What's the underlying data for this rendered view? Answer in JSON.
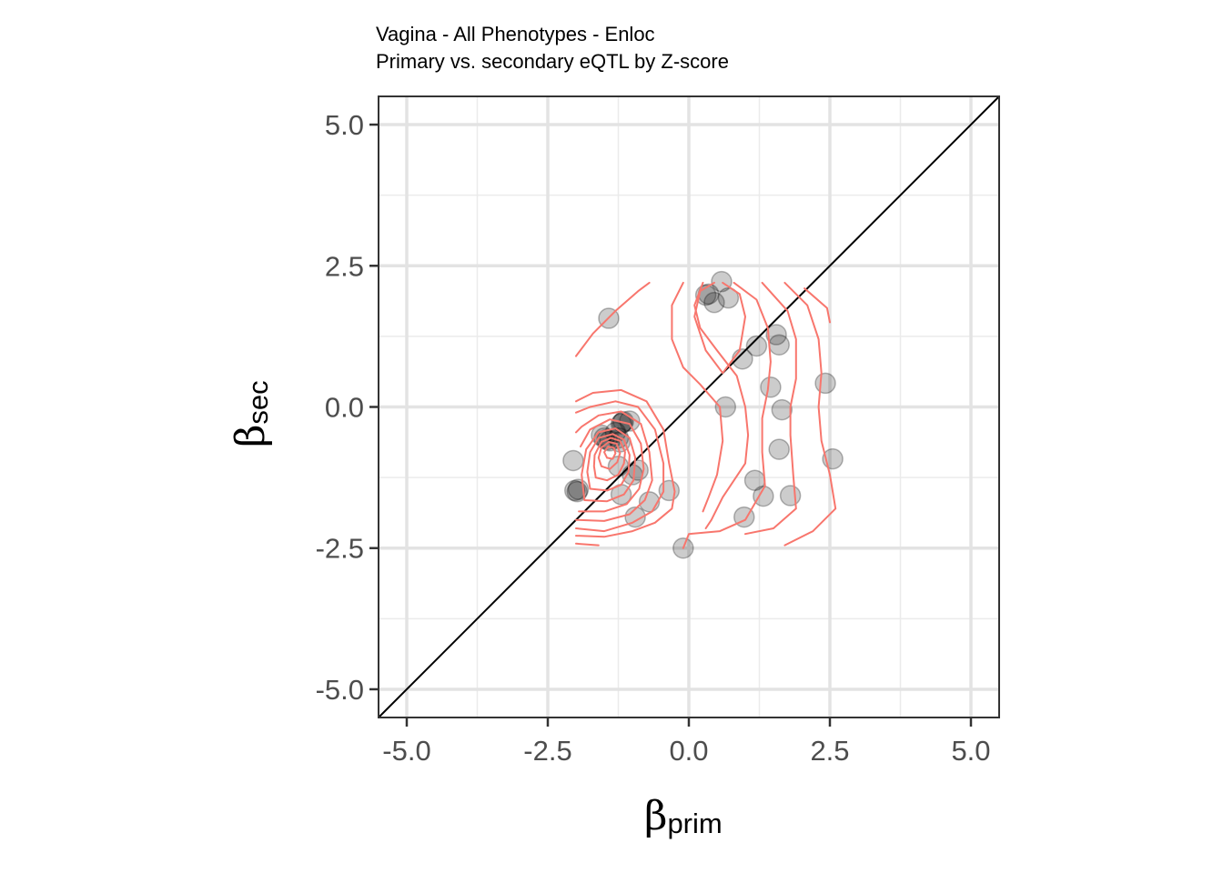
{
  "chart_data": {
    "type": "scatter",
    "title": "Vagina - All Phenotypes - Enloc",
    "subtitle": "Primary vs. secondary eQTL by Z-score",
    "xlabel": {
      "symbol": "β",
      "subscript": "prim"
    },
    "ylabel": {
      "symbol": "β",
      "subscript": "sec"
    },
    "xlim": [
      -5.5,
      5.5
    ],
    "ylim": [
      -5.5,
      5.5
    ],
    "x_ticks": [
      -5.0,
      -2.5,
      0.0,
      2.5,
      5.0
    ],
    "y_ticks": [
      -5.0,
      -2.5,
      0.0,
      2.5,
      5.0
    ],
    "x_tick_labels": [
      "-5.0",
      "-2.5",
      "0.0",
      "2.5",
      "5.0"
    ],
    "y_tick_labels": [
      "-5.0",
      "-2.5",
      "0.0",
      "2.5",
      "5.0"
    ],
    "grid": true,
    "reference_line": "y = x",
    "point_color": "#000000",
    "point_opacity": 0.2,
    "contour_color": "#f8766d",
    "points": [
      [
        -1.42,
        1.57
      ],
      [
        -1.18,
        -0.28
      ],
      [
        -1.2,
        -0.3
      ],
      [
        -1.16,
        -0.26
      ],
      [
        -1.05,
        -0.25
      ],
      [
        -1.3,
        -0.45
      ],
      [
        -1.25,
        -0.55
      ],
      [
        -1.5,
        -0.55
      ],
      [
        -1.45,
        -0.58
      ],
      [
        -1.4,
        -0.6
      ],
      [
        -1.55,
        -0.5
      ],
      [
        -1.22,
        -0.62
      ],
      [
        -2.05,
        -0.95
      ],
      [
        -1.25,
        -1.05
      ],
      [
        -1.0,
        -1.2
      ],
      [
        -0.9,
        -1.12
      ],
      [
        -1.2,
        -1.55
      ],
      [
        -2.02,
        -1.48
      ],
      [
        -1.98,
        -1.5
      ],
      [
        -1.96,
        -1.46
      ],
      [
        -0.7,
        -1.68
      ],
      [
        -0.35,
        -1.48
      ],
      [
        -0.95,
        -1.95
      ],
      [
        -0.1,
        -2.5
      ],
      [
        0.58,
        2.22
      ],
      [
        0.3,
        1.98
      ],
      [
        0.35,
        2.0
      ],
      [
        0.45,
        1.85
      ],
      [
        0.7,
        1.93
      ],
      [
        0.95,
        0.85
      ],
      [
        1.2,
        1.08
      ],
      [
        1.55,
        1.28
      ],
      [
        1.6,
        1.1
      ],
      [
        1.45,
        0.35
      ],
      [
        0.65,
        0.0
      ],
      [
        1.65,
        -0.05
      ],
      [
        2.42,
        0.42
      ],
      [
        1.6,
        -0.75
      ],
      [
        2.55,
        -0.92
      ],
      [
        1.17,
        -1.3
      ],
      [
        1.32,
        -1.58
      ],
      [
        1.8,
        -1.57
      ],
      [
        0.98,
        -1.95
      ]
    ],
    "contours": [
      [
        [
          -2.0,
          -2.42
        ],
        [
          -1.6,
          -2.45
        ]
      ],
      [
        [
          -2.0,
          -2.28
        ],
        [
          -1.5,
          -2.3
        ],
        [
          -1.0,
          -2.2
        ],
        [
          -0.6,
          -2.05
        ],
        [
          -0.3,
          -1.8
        ],
        [
          -0.25,
          -1.5
        ],
        [
          -0.35,
          -1.0
        ],
        [
          -0.45,
          -0.4
        ],
        [
          -0.75,
          0.1
        ],
        [
          -1.2,
          0.3
        ],
        [
          -1.7,
          0.25
        ],
        [
          -2.0,
          0.1
        ]
      ],
      [
        [
          -2.0,
          -2.15
        ],
        [
          -1.5,
          -2.2
        ],
        [
          -1.0,
          -2.05
        ],
        [
          -0.65,
          -1.85
        ],
        [
          -0.45,
          -1.5
        ],
        [
          -0.45,
          -1.0
        ],
        [
          -0.6,
          -0.4
        ],
        [
          -0.9,
          0.0
        ],
        [
          -1.3,
          0.1
        ],
        [
          -1.75,
          0.0
        ],
        [
          -2.0,
          -0.1
        ]
      ],
      [
        [
          -2.0,
          -2.0
        ],
        [
          -1.5,
          -2.02
        ],
        [
          -1.05,
          -1.9
        ],
        [
          -0.78,
          -1.65
        ],
        [
          -0.65,
          -1.3
        ],
        [
          -0.7,
          -0.8
        ],
        [
          -0.85,
          -0.3
        ],
        [
          -1.2,
          -0.08
        ],
        [
          -1.6,
          -0.15
        ],
        [
          -1.9,
          -0.35
        ],
        [
          -2.0,
          -0.45
        ]
      ],
      [
        [
          -1.95,
          -1.85
        ],
        [
          -1.5,
          -1.85
        ],
        [
          -1.1,
          -1.72
        ],
        [
          -0.88,
          -1.45
        ],
        [
          -0.8,
          -1.1
        ],
        [
          -0.85,
          -0.65
        ],
        [
          -1.05,
          -0.3
        ],
        [
          -1.4,
          -0.22
        ],
        [
          -1.75,
          -0.4
        ],
        [
          -1.92,
          -0.7
        ]
      ],
      [
        [
          -1.85,
          -1.65
        ],
        [
          -1.45,
          -1.67
        ],
        [
          -1.15,
          -1.55
        ],
        [
          -0.98,
          -1.3
        ],
        [
          -0.95,
          -0.9
        ],
        [
          -1.05,
          -0.55
        ],
        [
          -1.3,
          -0.38
        ],
        [
          -1.6,
          -0.45
        ],
        [
          -1.82,
          -0.75
        ],
        [
          -1.9,
          -1.2
        ],
        [
          -1.85,
          -1.65
        ]
      ],
      [
        [
          -1.75,
          -1.45
        ],
        [
          -1.45,
          -1.48
        ],
        [
          -1.2,
          -1.38
        ],
        [
          -1.07,
          -1.15
        ],
        [
          -1.05,
          -0.85
        ],
        [
          -1.15,
          -0.58
        ],
        [
          -1.35,
          -0.48
        ],
        [
          -1.6,
          -0.55
        ],
        [
          -1.75,
          -0.8
        ],
        [
          -1.8,
          -1.15
        ],
        [
          -1.75,
          -1.45
        ]
      ],
      [
        [
          -1.65,
          -1.25
        ],
        [
          -1.45,
          -1.3
        ],
        [
          -1.25,
          -1.2
        ],
        [
          -1.15,
          -1.0
        ],
        [
          -1.13,
          -0.8
        ],
        [
          -1.22,
          -0.6
        ],
        [
          -1.38,
          -0.55
        ],
        [
          -1.55,
          -0.62
        ],
        [
          -1.67,
          -0.85
        ],
        [
          -1.68,
          -1.05
        ],
        [
          -1.65,
          -1.25
        ]
      ],
      [
        [
          -1.55,
          -1.05
        ],
        [
          -1.4,
          -1.1
        ],
        [
          -1.27,
          -0.98
        ],
        [
          -1.22,
          -0.82
        ],
        [
          -1.28,
          -0.65
        ],
        [
          -1.42,
          -0.62
        ],
        [
          -1.55,
          -0.72
        ],
        [
          -1.6,
          -0.9
        ],
        [
          -1.55,
          -1.05
        ]
      ],
      [
        [
          -1.45,
          -0.9
        ],
        [
          -1.35,
          -0.92
        ],
        [
          -1.3,
          -0.82
        ],
        [
          -1.33,
          -0.72
        ],
        [
          -1.43,
          -0.7
        ],
        [
          -1.5,
          -0.8
        ],
        [
          -1.45,
          -0.9
        ]
      ],
      [
        [
          -2.0,
          0.9
        ],
        [
          -1.7,
          1.3
        ],
        [
          -1.3,
          1.7
        ],
        [
          -0.9,
          2.05
        ],
        [
          -0.7,
          2.2
        ]
      ],
      [
        [
          -0.1,
          2.2
        ],
        [
          -0.3,
          1.8
        ],
        [
          -0.3,
          1.2
        ],
        [
          -0.1,
          0.7
        ],
        [
          0.2,
          0.4
        ],
        [
          0.55,
          0.0
        ],
        [
          0.6,
          -0.6
        ],
        [
          0.5,
          -1.2
        ],
        [
          0.35,
          -1.6
        ],
        [
          0.25,
          -1.85
        ]
      ],
      [
        [
          0.25,
          2.2
        ],
        [
          0.1,
          1.8
        ],
        [
          0.2,
          1.4
        ],
        [
          0.5,
          1.0
        ],
        [
          0.85,
          0.55
        ],
        [
          1.0,
          0.0
        ],
        [
          1.05,
          -0.5
        ],
        [
          1.0,
          -1.0
        ],
        [
          0.6,
          -1.6
        ],
        [
          0.4,
          -2.0
        ],
        [
          0.3,
          -2.15
        ]
      ],
      [
        [
          0.8,
          2.2
        ],
        [
          1.2,
          1.9
        ],
        [
          1.4,
          1.4
        ],
        [
          1.45,
          0.8
        ],
        [
          1.4,
          0.3
        ],
        [
          1.3,
          -0.2
        ],
        [
          1.3,
          -0.8
        ],
        [
          1.35,
          -1.4
        ],
        [
          1.0,
          -2.0
        ],
        [
          0.55,
          -2.2
        ],
        [
          0.0,
          -2.25
        ],
        [
          -0.1,
          -2.5
        ]
      ],
      [
        [
          0.6,
          2.2
        ],
        [
          0.9,
          2.0
        ],
        [
          1.0,
          1.6
        ],
        [
          0.9,
          1.0
        ],
        [
          0.6,
          0.6
        ],
        [
          0.3,
          1.0
        ],
        [
          0.1,
          1.6
        ],
        [
          0.2,
          2.05
        ],
        [
          0.45,
          2.2
        ]
      ],
      [
        [
          1.3,
          2.2
        ],
        [
          1.75,
          1.7
        ],
        [
          1.9,
          1.2
        ],
        [
          1.9,
          0.5
        ],
        [
          1.8,
          0.0
        ],
        [
          1.8,
          -0.5
        ],
        [
          1.85,
          -1.2
        ],
        [
          1.9,
          -1.8
        ],
        [
          1.5,
          -2.15
        ],
        [
          1.0,
          -2.25
        ]
      ],
      [
        [
          1.7,
          2.2
        ],
        [
          2.1,
          1.8
        ],
        [
          2.3,
          1.2
        ],
        [
          2.35,
          0.6
        ],
        [
          2.3,
          0.0
        ],
        [
          2.35,
          -0.6
        ],
        [
          2.5,
          -1.2
        ],
        [
          2.6,
          -1.8
        ],
        [
          2.2,
          -2.2
        ],
        [
          1.7,
          -2.45
        ]
      ],
      [
        [
          2.05,
          2.1
        ],
        [
          2.45,
          1.75
        ],
        [
          2.5,
          1.5
        ]
      ]
    ]
  }
}
